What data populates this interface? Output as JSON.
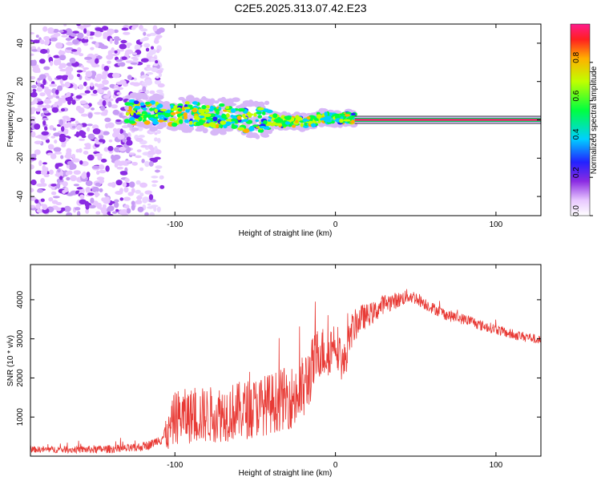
{
  "title": "C2E5.2025.313.07.42.E23",
  "chart_data": [
    {
      "type": "heatmap",
      "name": "spectrogram",
      "xlabel": "Height of straight line (km)",
      "ylabel": "Frequency (Hz)",
      "xlim": [
        -190,
        128
      ],
      "ylim": [
        -50,
        50
      ],
      "xticks": [
        -100,
        0,
        100
      ],
      "yticks": [
        -40,
        -20,
        0,
        20,
        40
      ],
      "xtick_labels": [
        "-100",
        "0",
        "100"
      ],
      "ytick_labels": [
        "-40",
        "-20",
        "0",
        "20",
        "40"
      ],
      "colorbar": {
        "label": "Normalized spectral amplitude",
        "range": [
          0,
          1
        ],
        "ticks": [
          0.0,
          0.2,
          0.4,
          0.6,
          0.8
        ],
        "tick_labels": [
          "0.0",
          "0.2",
          "0.4",
          "0.6",
          "0.8"
        ]
      },
      "features": [
        {
          "name": "noise",
          "x_range": [
            -190,
            -108
          ],
          "freq_range": [
            -50,
            50
          ],
          "amplitude": 0.12
        },
        {
          "name": "signal-band",
          "x_range": [
            -130,
            12
          ],
          "freq_center": [
            4,
            3,
            2,
            0,
            -1,
            1
          ],
          "amplitude": 0.5
        },
        {
          "name": "carrier-line",
          "x_range": [
            12,
            128
          ],
          "freq": 0,
          "amplitude": 0.95
        }
      ]
    },
    {
      "type": "line",
      "name": "snr",
      "xlabel": "Height of straight line (km)",
      "ylabel": "SNR (10 * v/v)",
      "xlim": [
        -190,
        128
      ],
      "ylim": [
        0,
        4900
      ],
      "xticks": [
        -100,
        0,
        100
      ],
      "yticks": [
        1000,
        2000,
        3000,
        4000
      ],
      "xtick_labels": [
        "-100",
        "0",
        "100"
      ],
      "ytick_labels": [
        "1000",
        "2000",
        "3000",
        "4000"
      ],
      "color": "#e83a35",
      "envelope": {
        "x": [
          -190,
          -150,
          -125,
          -115,
          -104,
          -100,
          -80,
          -60,
          -40,
          -30,
          -25,
          -20,
          -15,
          -10,
          -5,
          0,
          5,
          10,
          15,
          20,
          25,
          30,
          35,
          40,
          45,
          50,
          60,
          70,
          80,
          85,
          90,
          100,
          110,
          120,
          128
        ],
        "y": [
          170,
          170,
          200,
          300,
          580,
          1000,
          1050,
          1150,
          1350,
          1500,
          1500,
          1700,
          2200,
          2700,
          2600,
          3000,
          2300,
          3200,
          3500,
          3600,
          3700,
          3900,
          3950,
          4000,
          4100,
          4050,
          3800,
          3600,
          3500,
          3450,
          3350,
          3250,
          3100,
          3050,
          2950
        ]
      },
      "noise_amplitude": {
        "x": [
          -190,
          -110,
          -100,
          -30,
          -20,
          -10,
          0,
          10,
          20,
          40,
          60,
          128
        ],
        "y": [
          80,
          120,
          700,
          800,
          900,
          700,
          600,
          450,
          300,
          200,
          150,
          120
        ]
      }
    }
  ]
}
